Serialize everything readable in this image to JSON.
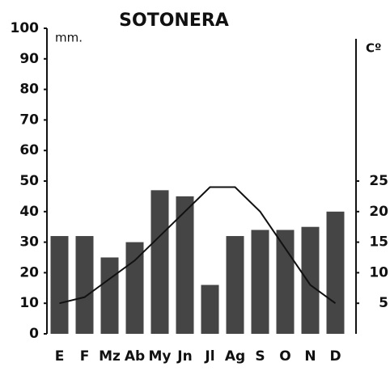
{
  "chart_data": {
    "type": "bar",
    "title": "SOTONERA",
    "y_label": "mm.",
    "y2_label": "Cº",
    "categories": [
      "E",
      "F",
      "Mz",
      "Ab",
      "My",
      "Jn",
      "Jl",
      "Ag",
      "S",
      "O",
      "N",
      "D"
    ],
    "series": [
      {
        "type": "bar",
        "color": "#454545",
        "values": [
          32,
          32,
          25,
          30,
          47,
          45,
          16,
          32,
          34,
          34,
          35,
          40
        ]
      },
      {
        "type": "line",
        "axis": "y2",
        "color": "#111111",
        "values": [
          5,
          6,
          9,
          12,
          16,
          20,
          24,
          24,
          20,
          14,
          8,
          5
        ]
      }
    ],
    "ylim": [
      0,
      100
    ],
    "yticks": [
      0,
      10,
      20,
      30,
      40,
      50,
      60,
      70,
      80,
      90,
      100
    ],
    "y2lim": [
      0,
      50
    ],
    "y2ticks": [
      5,
      10,
      15,
      20,
      25
    ]
  }
}
